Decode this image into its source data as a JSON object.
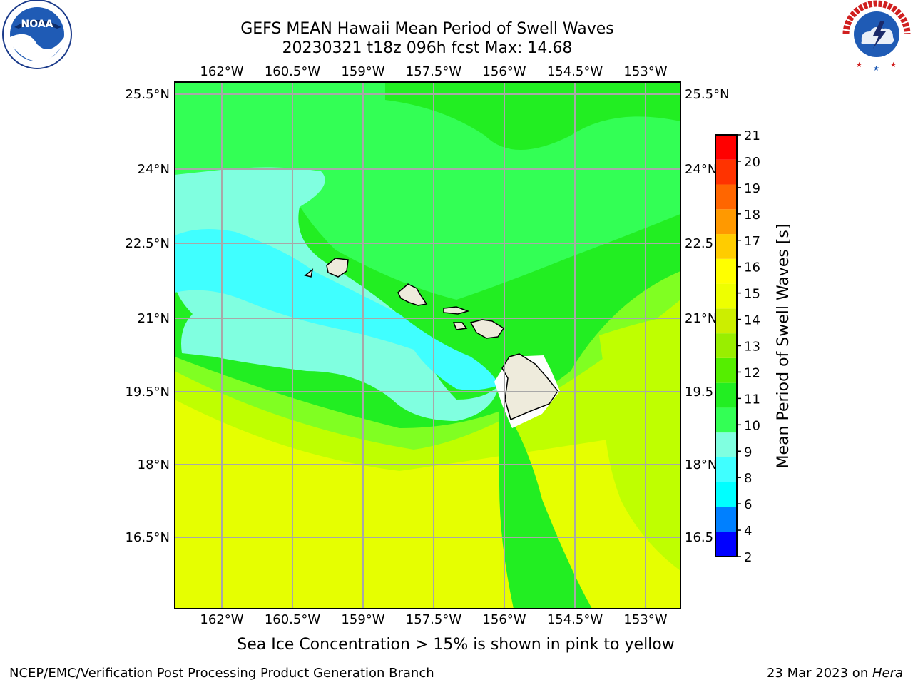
{
  "title_line1": "GEFS MEAN Hawaii Mean Period of Swell Waves",
  "title_line2": "20230321 t18z 096h fcst   Max: 14.68",
  "map": {
    "lon_ticks": [
      "162°W",
      "160.5°W",
      "159°W",
      "157.5°W",
      "156°W",
      "154.5°W",
      "153°W"
    ],
    "lat_ticks_left": [
      "25.5°N",
      "24°N",
      "22.5°N",
      "21°N",
      "19.5°N",
      "18°N",
      "16.5°N"
    ],
    "lat_ticks_right": [
      "25.5°N",
      "24°N",
      "22.5",
      "21°N",
      "19.5",
      "18°N",
      "16.5"
    ],
    "field_colors": {
      "yellow": "#e6ff00",
      "yellow_green": "#bfff00",
      "light_green": "#80ff22",
      "green": "#22ee22",
      "green2": "#33ff55",
      "aqua": "#80ffe0",
      "cyan": "#40ffff",
      "land": "#eeebdc"
    }
  },
  "colorbar": {
    "label": "Mean Period of Swell Waves [s]",
    "ticks": [
      "2",
      "4",
      "6",
      "8",
      "9",
      "10",
      "11",
      "12",
      "13",
      "14",
      "15",
      "16",
      "17",
      "18",
      "19",
      "20",
      "21"
    ],
    "colors": [
      "#0000ff",
      "#0080ff",
      "#00ffff",
      "#40ffff",
      "#80ffe0",
      "#33ff55",
      "#22ee22",
      "#55ee00",
      "#99ee00",
      "#ccee00",
      "#eeff00",
      "#ffff00",
      "#ffcc00",
      "#ff9900",
      "#ff6600",
      "#ff3300",
      "#ff0000"
    ]
  },
  "note": "Sea Ice Concentration > 15% is shown in pink to yellow",
  "footer_left": "NCEP/EMC/Verification Post Processing Product Generation Branch",
  "footer_right_prefix": "23 Mar 2023 on ",
  "footer_right_host": "Hera",
  "logos": {
    "noaa_text": "NOAA",
    "nws_ring_text": "NATIONAL WEATHER SERVICE"
  }
}
